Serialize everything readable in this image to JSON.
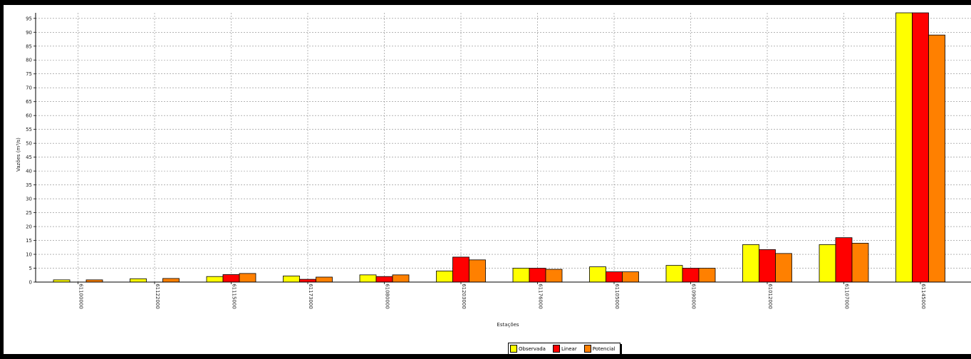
{
  "chart_data": {
    "type": "bar",
    "ylabel": "Vazões (m³/s)",
    "xlabel": "Estações",
    "ylim": [
      0,
      97
    ],
    "yticks": [
      0,
      5,
      10,
      15,
      20,
      25,
      30,
      35,
      40,
      45,
      50,
      55,
      60,
      65,
      70,
      75,
      80,
      85,
      90,
      95
    ],
    "grid": true,
    "legend_position": "bottom",
    "categories": [
      "61100000",
      "61122000",
      "61115000",
      "61173000",
      "61080000",
      "61203000",
      "61176000",
      "61105000",
      "61090000",
      "61012000",
      "61107000",
      "61145000"
    ],
    "series": [
      {
        "name": "Observada",
        "color": "#ffff00",
        "values": [
          0.8,
          1.2,
          2.0,
          2.2,
          2.6,
          4.0,
          5.0,
          5.5,
          6.0,
          13.5,
          13.5,
          97
        ]
      },
      {
        "name": "Linear",
        "color": "#ff0000",
        "values": [
          0.0,
          0.0,
          2.7,
          1.0,
          2.0,
          9.0,
          5.0,
          3.7,
          5.0,
          11.7,
          16.0,
          97
        ]
      },
      {
        "name": "Potencial",
        "color": "#ff8000",
        "values": [
          0.8,
          1.3,
          3.1,
          1.8,
          2.6,
          8.0,
          4.6,
          3.7,
          5.0,
          10.3,
          14.0,
          89
        ]
      }
    ]
  }
}
